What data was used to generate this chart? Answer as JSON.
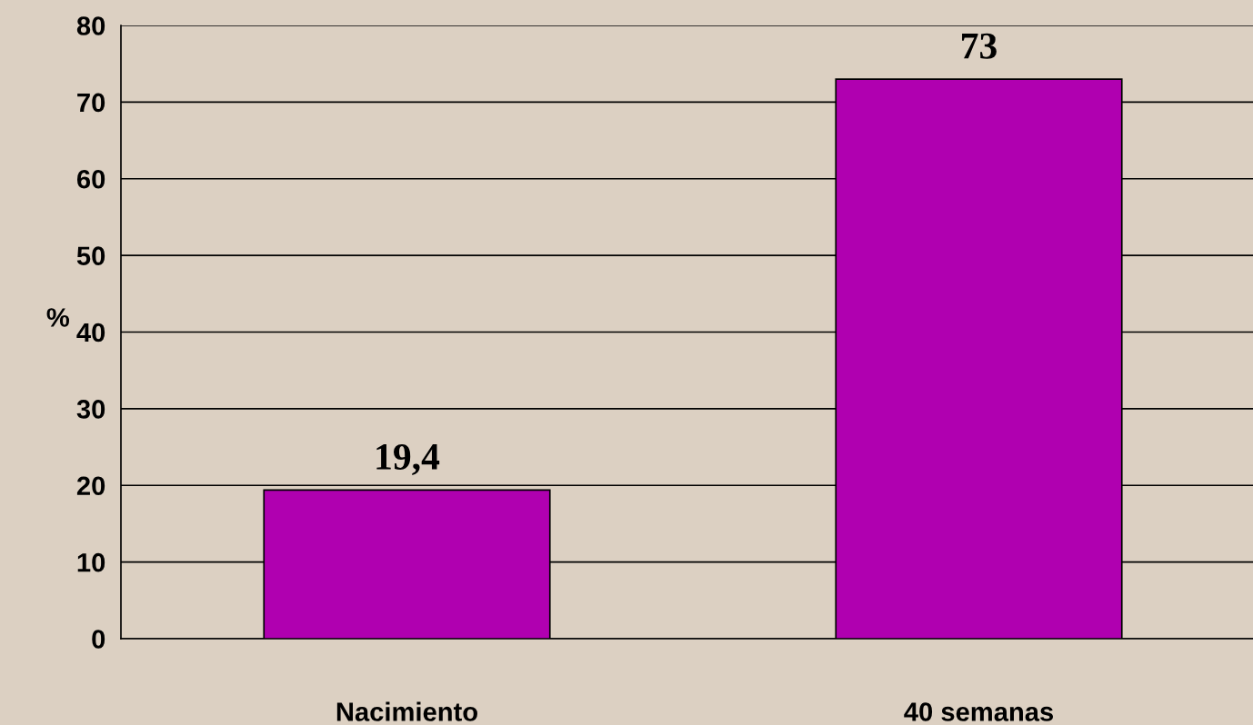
{
  "chart_data": {
    "type": "bar",
    "ylabel": "%",
    "categories": [
      "Nacimiento",
      "40 semanas"
    ],
    "values": [
      19.4,
      73
    ],
    "value_labels": [
      "19,4",
      "73"
    ],
    "color": "#b000b0",
    "ylim": [
      0,
      80
    ],
    "yticks": [
      0,
      10,
      20,
      30,
      40,
      50,
      60,
      70,
      80
    ],
    "grid": "y"
  }
}
